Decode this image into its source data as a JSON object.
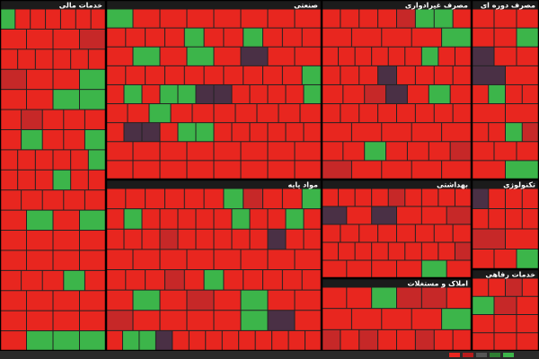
{
  "sectors": [
    {
      "title": "خدمات مالی"
    },
    {
      "title": "صنعتی"
    },
    {
      "title": "مصرف غیرادواری"
    },
    {
      "title": "مصرف دوره ای"
    },
    {
      "title": "مواد پایه"
    },
    {
      "title": "بهداشتی"
    },
    {
      "title": "تکنولوژی"
    },
    {
      "title": "املاک و مستغلات"
    },
    {
      "title": "خدمات رفاهی"
    }
  ]
}
